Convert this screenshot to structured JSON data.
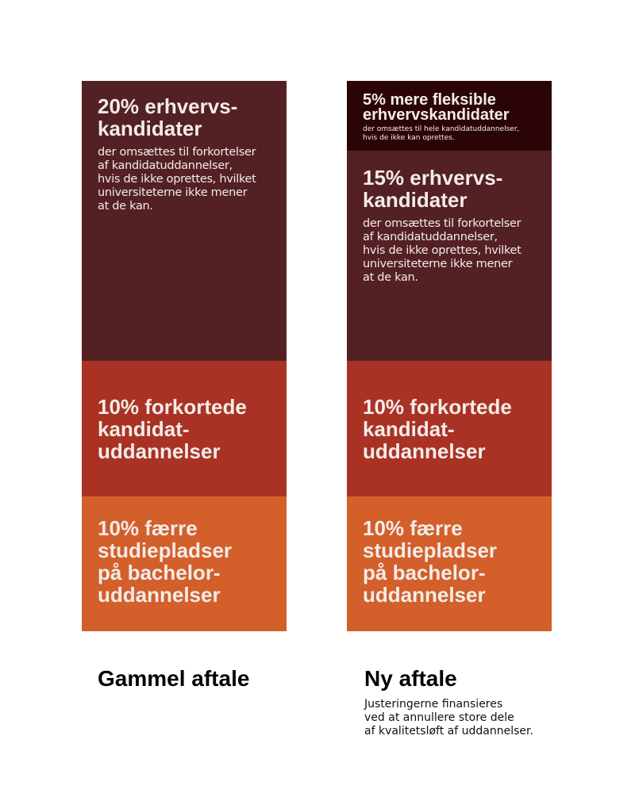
{
  "colors": {
    "flex": "#2b0506",
    "erhverv": "#532024",
    "forkort": "#a93224",
    "faerre": "#d35f2b"
  },
  "old": {
    "title": "Gammel aftale",
    "erhverv": {
      "value_percent": 20,
      "heading": "20% erhvervs-\nkandidater",
      "body": "der omsættes til forkortelser\naf kandidatuddannelser,\nhvis de ikke oprettes, hvilket\nuniversiteterne ikke mener\nat de kan."
    },
    "forkort": {
      "value_percent": 10,
      "heading": "10% forkortede\nkandidat-\nuddannelser"
    },
    "faerre": {
      "value_percent": 10,
      "heading": "10% færre\nstudiepladser\npå bachelor-\nuddannelser"
    }
  },
  "new": {
    "title": "Ny aftale",
    "note": "Justeringerne finansieres\nved at annullere store dele\naf kvalitetsløft af uddannelser.",
    "flex": {
      "value_percent": 5,
      "heading": "5% mere fleksible\nerhvervskandidater",
      "body": "der omsættes til hele  kandidatuddannelser,\nhvis de ikke kan oprettes."
    },
    "erhverv": {
      "value_percent": 15,
      "heading": "15% erhvervs-\nkandidater",
      "body": "der omsættes til forkortelser\naf kandidatuddannelser,\nhvis de ikke oprettes, hvilket\nuniversiteterne ikke mener\nat de kan."
    },
    "forkort": {
      "value_percent": 10,
      "heading": "10% forkortede\nkandidat-\nuddannelser"
    },
    "faerre": {
      "value_percent": 10,
      "heading": "10% færre\nstudiepladser\npå bachelor-\nuddannelser"
    }
  }
}
